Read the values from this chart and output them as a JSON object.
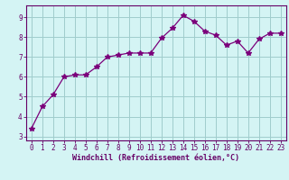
{
  "x": [
    0,
    1,
    2,
    3,
    4,
    5,
    6,
    7,
    8,
    9,
    10,
    11,
    12,
    13,
    14,
    15,
    16,
    17,
    18,
    19,
    20,
    21,
    22,
    23
  ],
  "y": [
    3.4,
    4.5,
    5.1,
    6.0,
    6.1,
    6.1,
    6.5,
    7.0,
    7.1,
    7.2,
    7.2,
    7.2,
    7.95,
    8.45,
    9.1,
    8.8,
    8.3,
    8.1,
    7.6,
    7.8,
    7.2,
    7.9,
    8.2,
    8.2
  ],
  "line_color": "#7B007B",
  "marker": "*",
  "marker_size": 4,
  "bg_color": "#d4f4f4",
  "grid_color": "#a0cccc",
  "xlabel": "Windchill (Refroidissement éolien,°C)",
  "ylim": [
    2.8,
    9.6
  ],
  "yticks": [
    3,
    4,
    5,
    6,
    7,
    8,
    9
  ],
  "xlim": [
    -0.5,
    23.5
  ],
  "xticks": [
    0,
    1,
    2,
    3,
    4,
    5,
    6,
    7,
    8,
    9,
    10,
    11,
    12,
    13,
    14,
    15,
    16,
    17,
    18,
    19,
    20,
    21,
    22,
    23
  ],
  "spine_color": "#660066",
  "tick_color": "#660066",
  "label_color": "#660066"
}
